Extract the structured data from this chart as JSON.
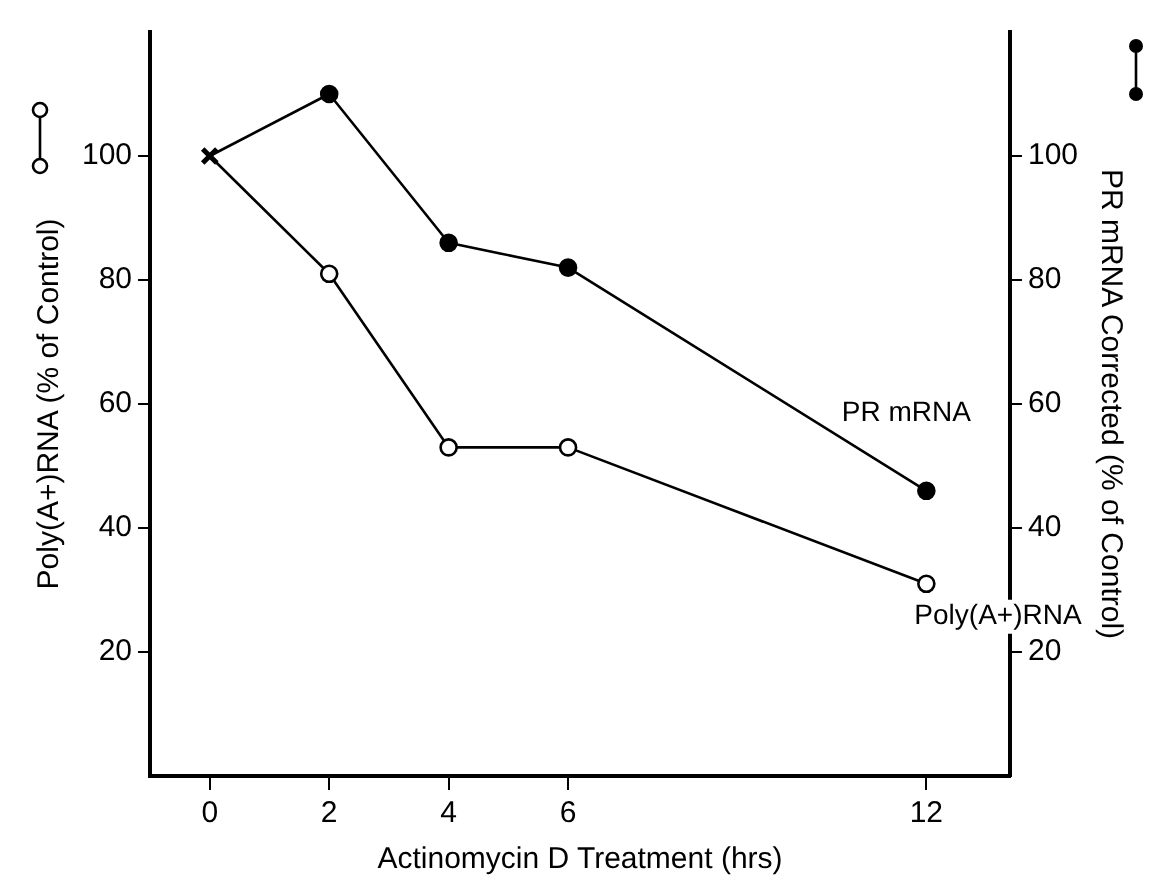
{
  "chart_data": {
    "type": "line",
    "xlabel": "Actinomycin D Treatment (hrs)",
    "ylabel": "Poly(A+)RNA (% of Control)",
    "y2label": "PR mRNA Corrected (% of Control)",
    "xlim": [
      -1,
      13.4
    ],
    "xticks": [
      0,
      2,
      4,
      6,
      12
    ],
    "ylim": [
      0,
      120
    ],
    "yticks": [
      20,
      40,
      60,
      80,
      100
    ],
    "y2lim": [
      0,
      120
    ],
    "y2ticks": [
      20,
      40,
      60,
      80,
      100
    ],
    "marker": "circle",
    "line_style": "solid",
    "grid": false,
    "legend": false,
    "series": [
      {
        "name": "PR mRNA",
        "color": "#000000",
        "axis": "y2",
        "x": [
          0,
          2,
          4,
          6,
          12
        ],
        "values": [
          100,
          110,
          86,
          82,
          46
        ]
      },
      {
        "name": "Poly(A+)RNA",
        "color": "#000000",
        "axis": "y",
        "x": [
          0,
          2,
          4,
          6,
          12
        ],
        "values": [
          100,
          81,
          53,
          53,
          31
        ]
      },
      {
        "type": "scatter",
        "color": "#000000",
        "axis": "y",
        "marker": "cross",
        "x": [
          0
        ],
        "values": [
          100
        ]
      }
    ]
  }
}
